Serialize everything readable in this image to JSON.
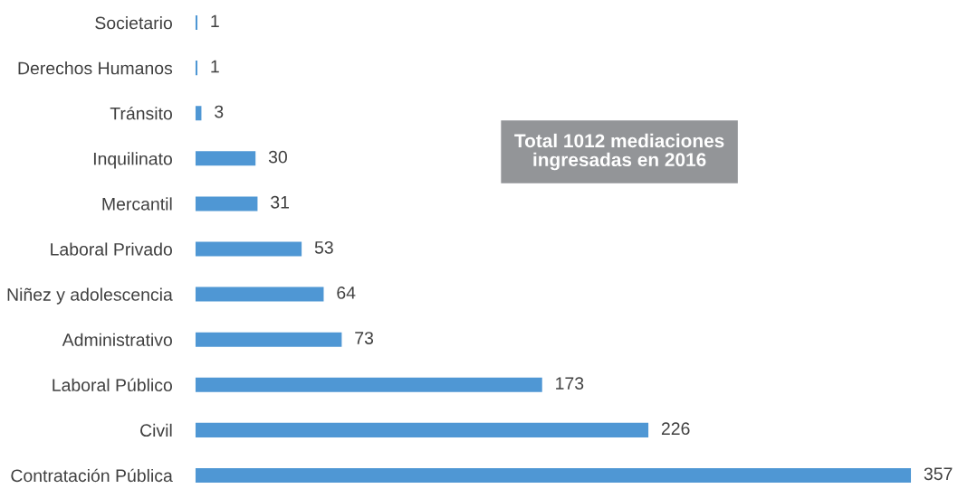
{
  "chart_data": {
    "type": "bar",
    "orientation": "horizontal",
    "categories": [
      "Societario",
      "Derechos Humanos",
      "Tránsito",
      "Inquilinato",
      "Mercantil",
      "Laboral Privado",
      "Niñez y adolescencia",
      "Administrativo",
      "Laboral Público",
      "Civil",
      "Contratación Pública"
    ],
    "values": [
      1,
      1,
      3,
      30,
      31,
      53,
      64,
      73,
      173,
      226,
      357
    ],
    "color": "#4f97d4",
    "data_labels": true,
    "tick_labels": "y",
    "grid": false,
    "annotations": [
      "Total 1012 mediaciones\ningresadas en 2016"
    ]
  }
}
